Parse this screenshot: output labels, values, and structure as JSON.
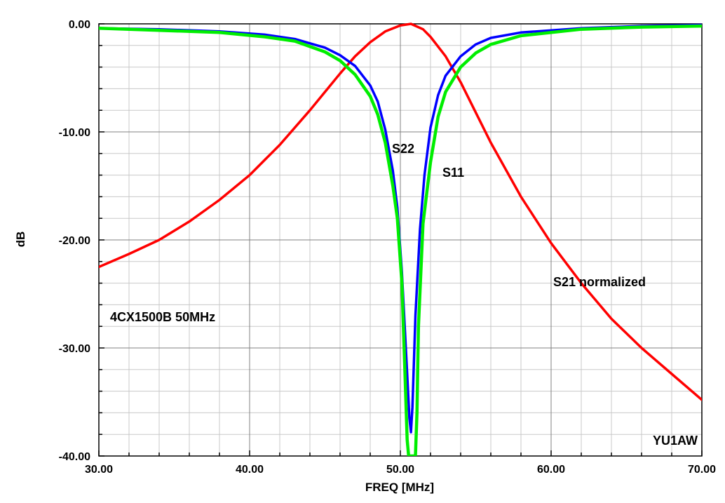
{
  "chart_data": {
    "type": "line",
    "title": "",
    "xlabel": "FREQ [MHz]",
    "ylabel": "dB",
    "xlim": [
      30,
      70
    ],
    "ylim": [
      -40,
      0
    ],
    "x_ticks": [
      30,
      40,
      50,
      60,
      70
    ],
    "x_tick_labels": [
      "30.00",
      "40.00",
      "50.00",
      "60.00",
      "70.00"
    ],
    "y_ticks": [
      0,
      -10,
      -20,
      -30,
      -40
    ],
    "y_tick_labels": [
      "0.00",
      "-10.00",
      "-20.00",
      "-30.00",
      "-40.00"
    ],
    "x_minor_step": 2,
    "y_minor_step": 2,
    "grid": true,
    "colors": {
      "s22": "#0000ff",
      "s11": "#00ee00",
      "s21": "#ff0000",
      "grid_major": "#808080",
      "grid_minor": "#c8c8c8"
    },
    "series": [
      {
        "id": "s22",
        "label": "S22",
        "x": [
          30,
          34,
          38,
          41,
          43,
          45,
          46,
          47,
          48,
          48.5,
          49,
          49.5,
          49.8,
          50.1,
          50.4,
          50.6,
          50.7,
          50.8,
          51,
          51.3,
          51.6,
          52,
          52.5,
          53,
          54,
          55,
          56,
          58,
          62,
          66,
          70
        ],
        "y": [
          -0.4,
          -0.5,
          -0.7,
          -1.0,
          -1.4,
          -2.2,
          -2.9,
          -3.9,
          -5.7,
          -7.2,
          -9.8,
          -13.6,
          -17.0,
          -23.0,
          -31.0,
          -36.5,
          -37.8,
          -35.5,
          -27.0,
          -19.0,
          -14.0,
          -9.6,
          -6.6,
          -4.8,
          -3.0,
          -1.9,
          -1.3,
          -0.8,
          -0.4,
          -0.2,
          -0.1
        ]
      },
      {
        "id": "s11",
        "label": "S11",
        "x": [
          30,
          34,
          38,
          41,
          43,
          45,
          46,
          47,
          48,
          48.5,
          49,
          49.5,
          49.8,
          50.1,
          50.3,
          50.45,
          50.55,
          51.0,
          51.1,
          51.2,
          51.5,
          52,
          52.5,
          53,
          54,
          55,
          56,
          58,
          62,
          66,
          70
        ],
        "y": [
          -0.4,
          -0.6,
          -0.8,
          -1.2,
          -1.6,
          -2.6,
          -3.4,
          -4.7,
          -6.7,
          -8.4,
          -11.0,
          -15.0,
          -18.0,
          -24.0,
          -32.0,
          -38.5,
          -40.0,
          -40.0,
          -36.0,
          -28.0,
          -18.5,
          -12.8,
          -8.6,
          -6.3,
          -4.0,
          -2.7,
          -1.9,
          -1.1,
          -0.5,
          -0.3,
          -0.2
        ]
      },
      {
        "id": "s21",
        "label": "S21 normalized",
        "x": [
          30,
          32,
          34,
          36,
          38,
          40,
          42,
          44,
          45,
          46,
          47,
          48,
          49,
          50,
          50.7,
          51.5,
          52,
          53,
          54,
          55,
          56,
          58,
          60,
          62,
          64,
          66,
          68,
          70
        ],
        "y": [
          -22.5,
          -21.3,
          -20.0,
          -18.3,
          -16.3,
          -14.0,
          -11.2,
          -8.0,
          -6.3,
          -4.6,
          -3.0,
          -1.7,
          -0.7,
          -0.15,
          0.0,
          -0.5,
          -1.2,
          -3.0,
          -5.4,
          -8.2,
          -11.0,
          -16.0,
          -20.3,
          -24.0,
          -27.3,
          -30.0,
          -32.4,
          -34.8
        ]
      }
    ],
    "annotations": {
      "s22_label": "S22",
      "s11_label": "S11",
      "s21_label": "S21 normalized",
      "device_label": "4CX1500B 50MHz",
      "author_label": "YU1AW"
    }
  }
}
